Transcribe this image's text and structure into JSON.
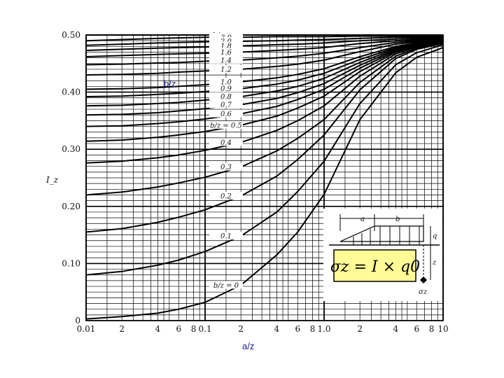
{
  "annotations": {
    "bz_overlay": "b/z",
    "az_overlay": "a/z",
    "ylabel": "I_z",
    "formula": "σz = I × q0",
    "inset_a": "a",
    "inset_b": "b",
    "inset_q": "q",
    "inset_z": "z",
    "inset_sigma": "σz"
  },
  "chart_data": {
    "type": "line",
    "title": "",
    "xlabel": "a/z",
    "ylabel": "I_z",
    "xscale": "log",
    "xlim": [
      0.01,
      10
    ],
    "ylim": [
      0,
      0.5
    ],
    "grid": true,
    "xtick_labels": [
      "0.01",
      "2",
      "4",
      "6",
      "8",
      "0.1",
      "2",
      "4",
      "6",
      "8",
      "1.0",
      "2",
      "4",
      "6",
      "8",
      "10"
    ],
    "ytick_labels": [
      "0",
      "0.10",
      "0.20",
      "0.30",
      "0.40",
      "0.50"
    ],
    "x": [
      0.01,
      0.02,
      0.04,
      0.06,
      0.1,
      0.2,
      0.4,
      0.6,
      1.0,
      2.0,
      4.0,
      6.0,
      10.0
    ],
    "series": [
      {
        "name": "b/z = ∞",
        "values": [
          0.5,
          0.5,
          0.5,
          0.5,
          0.5,
          0.5,
          0.5,
          0.5,
          0.5,
          0.5,
          0.5,
          0.5,
          0.5
        ]
      },
      {
        "name": "3.0",
        "values": [
          0.49,
          0.492,
          0.494,
          0.495,
          0.496,
          0.496,
          0.497,
          0.497,
          0.497,
          0.498,
          0.498,
          0.498,
          0.498
        ]
      },
      {
        "name": "2.0",
        "values": [
          0.482,
          0.484,
          0.486,
          0.487,
          0.488,
          0.489,
          0.49,
          0.491,
          0.492,
          0.494,
          0.496,
          0.496,
          0.496
        ]
      },
      {
        "name": "1.8",
        "values": [
          0.473,
          0.475,
          0.477,
          0.478,
          0.479,
          0.481,
          0.483,
          0.484,
          0.486,
          0.49,
          0.493,
          0.494,
          0.495
        ]
      },
      {
        "name": "1.6",
        "values": [
          0.462,
          0.464,
          0.466,
          0.467,
          0.468,
          0.47,
          0.473,
          0.475,
          0.478,
          0.485,
          0.49,
          0.492,
          0.494
        ]
      },
      {
        "name": "1.4",
        "values": [
          0.448,
          0.449,
          0.451,
          0.452,
          0.454,
          0.456,
          0.46,
          0.463,
          0.468,
          0.478,
          0.487,
          0.49,
          0.493
        ]
      },
      {
        "name": "1.2",
        "values": [
          0.43,
          0.431,
          0.433,
          0.435,
          0.437,
          0.44,
          0.445,
          0.449,
          0.456,
          0.471,
          0.484,
          0.488,
          0.492
        ]
      },
      {
        "name": "1.0",
        "values": [
          0.405,
          0.406,
          0.408,
          0.41,
          0.413,
          0.418,
          0.425,
          0.431,
          0.441,
          0.462,
          0.48,
          0.486,
          0.49
        ]
      },
      {
        "name": "0.9",
        "values": [
          0.392,
          0.393,
          0.396,
          0.398,
          0.401,
          0.406,
          0.414,
          0.421,
          0.433,
          0.457,
          0.478,
          0.485,
          0.49
        ]
      },
      {
        "name": "0.8",
        "values": [
          0.376,
          0.377,
          0.38,
          0.382,
          0.386,
          0.392,
          0.402,
          0.41,
          0.424,
          0.452,
          0.476,
          0.484,
          0.489
        ]
      },
      {
        "name": "0.7",
        "values": [
          0.36,
          0.361,
          0.364,
          0.367,
          0.371,
          0.378,
          0.389,
          0.399,
          0.415,
          0.447,
          0.474,
          0.483,
          0.489
        ]
      },
      {
        "name": "0.6",
        "values": [
          0.34,
          0.341,
          0.345,
          0.348,
          0.353,
          0.362,
          0.375,
          0.387,
          0.405,
          0.442,
          0.472,
          0.482,
          0.488
        ]
      },
      {
        "name": "b/z = 0.5",
        "values": [
          0.314,
          0.316,
          0.321,
          0.325,
          0.331,
          0.342,
          0.358,
          0.372,
          0.393,
          0.436,
          0.47,
          0.481,
          0.488
        ]
      },
      {
        "name": "0.4",
        "values": [
          0.276,
          0.279,
          0.285,
          0.29,
          0.298,
          0.312,
          0.333,
          0.35,
          0.376,
          0.428,
          0.467,
          0.479,
          0.487
        ]
      },
      {
        "name": "0.3",
        "values": [
          0.22,
          0.225,
          0.234,
          0.241,
          0.251,
          0.269,
          0.297,
          0.319,
          0.352,
          0.417,
          0.463,
          0.477,
          0.486
        ]
      },
      {
        "name": "0.2",
        "values": [
          0.155,
          0.161,
          0.172,
          0.181,
          0.194,
          0.218,
          0.253,
          0.282,
          0.325,
          0.404,
          0.459,
          0.475,
          0.485
        ]
      },
      {
        "name": "0.1",
        "values": [
          0.08,
          0.086,
          0.097,
          0.106,
          0.121,
          0.148,
          0.19,
          0.226,
          0.279,
          0.38,
          0.448,
          0.469,
          0.483
        ]
      },
      {
        "name": "b/z = 0",
        "values": [
          0.003,
          0.007,
          0.013,
          0.02,
          0.032,
          0.062,
          0.115,
          0.155,
          0.221,
          0.352,
          0.434,
          0.461,
          0.478
        ]
      }
    ]
  }
}
